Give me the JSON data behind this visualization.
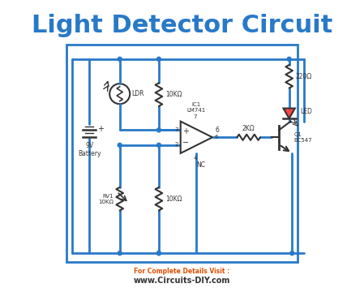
{
  "title": "Light Detector Circuit",
  "title_color": "#2979c8",
  "title_fontsize": 22,
  "subtitle": "For Complete Details Visit :",
  "subtitle_color": "#e05000",
  "website": "www.Circuits-DIY.com",
  "website_color": "#333333",
  "bg_color": "#ffffff",
  "circuit_color": "#2979c8",
  "line_color": "#2979c8",
  "component_color": "#333333",
  "border_color": "#2979c8",
  "border_lw": 2.0,
  "wire_lw": 2.0
}
